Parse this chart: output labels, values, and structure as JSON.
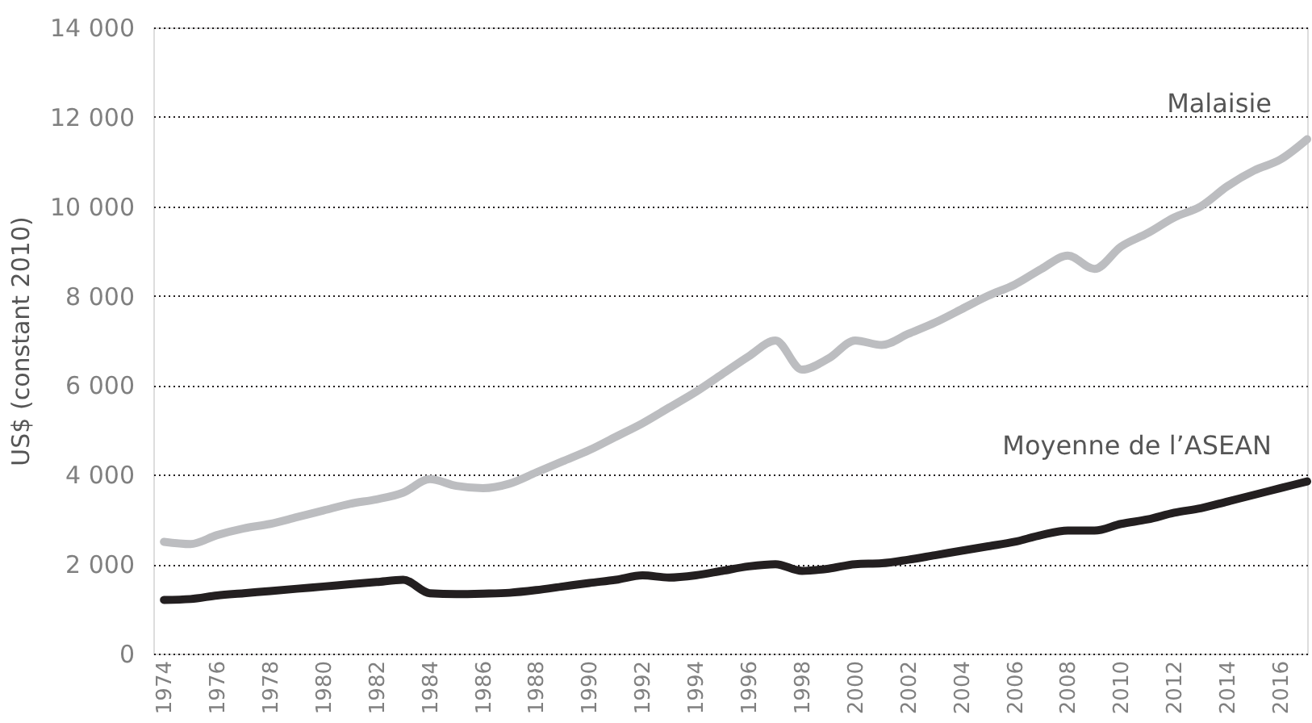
{
  "chart_data": {
    "type": "line",
    "ylabel": "US$ (constant 2010)",
    "x": [
      1974,
      1975,
      1976,
      1977,
      1978,
      1979,
      1980,
      1981,
      1982,
      1983,
      1984,
      1985,
      1986,
      1987,
      1988,
      1989,
      1990,
      1991,
      1992,
      1993,
      1994,
      1995,
      1996,
      1997,
      1998,
      1999,
      2000,
      2001,
      2002,
      2003,
      2004,
      2005,
      2006,
      2007,
      2008,
      2009,
      2010,
      2011,
      2012,
      2013,
      2014,
      2015,
      2016,
      2017
    ],
    "series": [
      {
        "name": "Malaisie",
        "color": "#bcbdc0",
        "values": [
          2500,
          2450,
          2650,
          2800,
          2900,
          3050,
          3200,
          3350,
          3450,
          3600,
          3900,
          3750,
          3700,
          3800,
          4050,
          4300,
          4550,
          4850,
          5150,
          5500,
          5850,
          6250,
          6650,
          7000,
          6350,
          6600,
          7000,
          6900,
          7150,
          7400,
          7700,
          8000,
          8250,
          8600,
          8900,
          8600,
          9100,
          9400,
          9750,
          10000,
          10450,
          10800,
          11050,
          11500
        ]
      },
      {
        "name": "Moyenne de l’ASEAN",
        "color": "#231f20",
        "values": [
          1200,
          1220,
          1300,
          1350,
          1400,
          1450,
          1500,
          1550,
          1600,
          1650,
          1350,
          1330,
          1340,
          1360,
          1420,
          1500,
          1580,
          1650,
          1750,
          1700,
          1750,
          1850,
          1950,
          2000,
          1850,
          1900,
          2000,
          2020,
          2100,
          2200,
          2300,
          2400,
          2500,
          2650,
          2750,
          2750,
          2900,
          3000,
          3150,
          3250,
          3400,
          3550,
          3700,
          3850
        ]
      }
    ],
    "xlim": [
      1973.6,
      2017
    ],
    "xticks": [
      1974,
      1976,
      1978,
      1980,
      1982,
      1984,
      1986,
      1988,
      1990,
      1992,
      1994,
      1996,
      1998,
      2000,
      2002,
      2004,
      2006,
      2008,
      2010,
      2012,
      2014,
      2016
    ],
    "ylim": [
      0,
      14000
    ],
    "yticks": [
      0,
      {
        "value": 2000,
        "label": "2 000"
      },
      {
        "value": 4000,
        "label": "4 000"
      },
      {
        "value": 6000,
        "label": "6 000"
      },
      {
        "value": 8000,
        "label": "8 000"
      },
      {
        "value": 10000,
        "label": "10 000"
      },
      {
        "value": 12000,
        "label": "12 000"
      },
      {
        "value": 14000,
        "label": "14 000"
      }
    ],
    "grid": "y",
    "legend": false,
    "marker": "none",
    "line_style": "solid"
  }
}
